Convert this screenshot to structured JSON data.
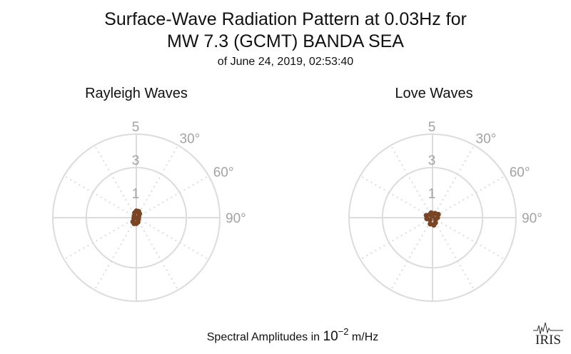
{
  "title_line1": "Surface-Wave Radiation Pattern at 0.03Hz for",
  "title_line2": "MW 7.3 (GCMT) BANDA SEA",
  "subtitle": "of June 24, 2019, 02:53:40",
  "caption": {
    "prefix": "Spectral Amplitudes in ",
    "base": "10",
    "exponent": "−2",
    "suffix": " m/Hz"
  },
  "logo_text": "IRIS",
  "colors": {
    "data": "#7a4524",
    "grid": "#dcdcdc",
    "tick_labels": "#a3a3a3"
  },
  "chart_data": [
    {
      "type": "scatter",
      "projection": "polar",
      "title": "Rayleigh Waves",
      "radial_ticks": [
        "1",
        "3",
        "5"
      ],
      "radial_range": [
        0,
        5.5
      ],
      "angle_ticks": [
        "30°",
        "60°",
        "90°"
      ],
      "grid": true,
      "points": [
        {
          "azimuth": 0,
          "amplitude": 0.4
        },
        {
          "azimuth": 20,
          "amplitude": 0.4
        },
        {
          "azimuth": 40,
          "amplitude": 0.3
        },
        {
          "azimuth": 70,
          "amplitude": 0.15
        },
        {
          "azimuth": 120,
          "amplitude": 0.15
        },
        {
          "azimuth": 160,
          "amplitude": 0.28
        },
        {
          "azimuth": 180,
          "amplitude": 0.35
        },
        {
          "azimuth": 200,
          "amplitude": 0.38
        },
        {
          "azimuth": 220,
          "amplitude": 0.32
        },
        {
          "azimuth": 250,
          "amplitude": 0.15
        },
        {
          "azimuth": 300,
          "amplitude": 0.15
        },
        {
          "azimuth": 340,
          "amplitude": 0.3
        }
      ]
    },
    {
      "type": "scatter",
      "projection": "polar",
      "title": "Love Waves",
      "radial_ticks": [
        "1",
        "3",
        "5"
      ],
      "radial_range": [
        0,
        5.5
      ],
      "angle_ticks": [
        "30°",
        "60°",
        "90°"
      ],
      "grid": true,
      "points": [
        {
          "azimuth": 0,
          "amplitude": 0.1
        },
        {
          "azimuth": 30,
          "amplitude": 0.3
        },
        {
          "azimuth": 60,
          "amplitude": 0.4
        },
        {
          "azimuth": 90,
          "amplitude": 0.3
        },
        {
          "azimuth": 120,
          "amplitude": 0.2
        },
        {
          "azimuth": 150,
          "amplitude": 0.35
        },
        {
          "azimuth": 170,
          "amplitude": 0.45
        },
        {
          "azimuth": 200,
          "amplitude": 0.4
        },
        {
          "azimuth": 230,
          "amplitude": 0.2
        },
        {
          "azimuth": 260,
          "amplitude": 0.35
        },
        {
          "azimuth": 290,
          "amplitude": 0.4
        },
        {
          "azimuth": 320,
          "amplitude": 0.25
        },
        {
          "azimuth": 345,
          "amplitude": 0.3
        }
      ]
    }
  ]
}
